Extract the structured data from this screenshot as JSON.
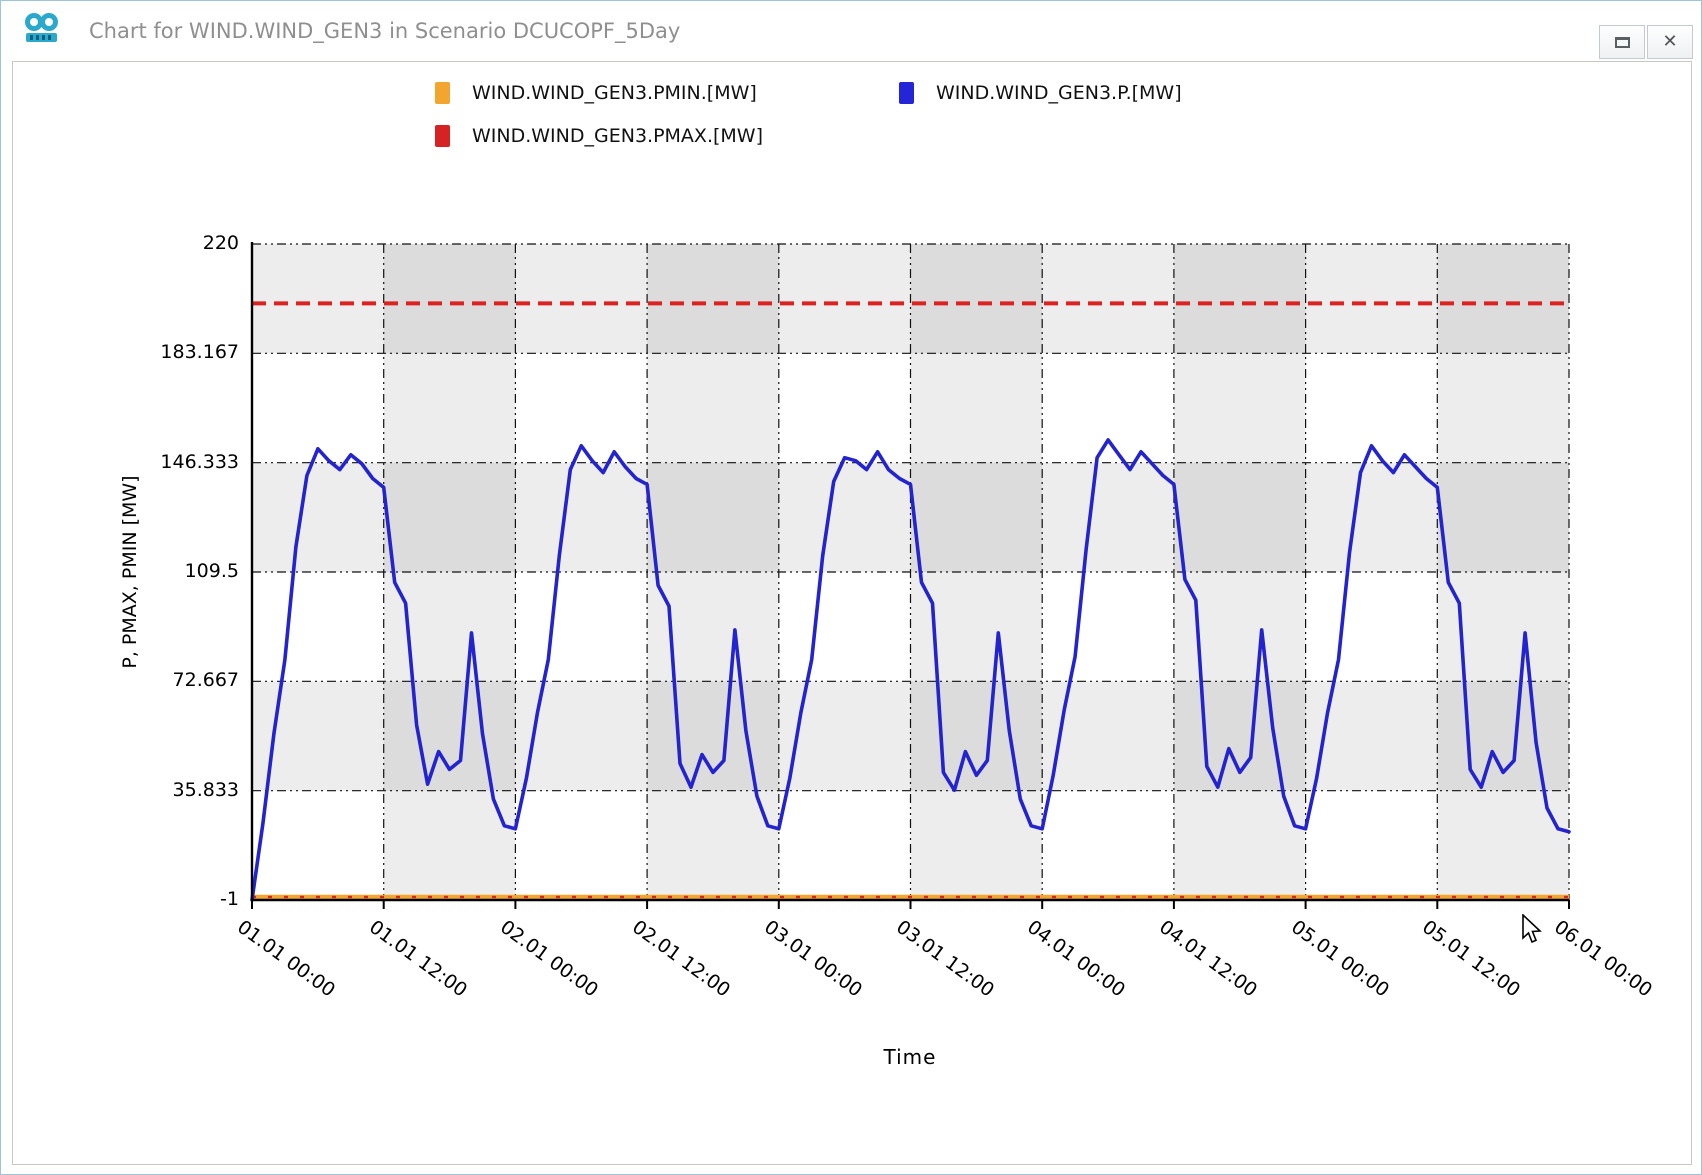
{
  "titlebar": {
    "title": "Chart for WIND.WIND_GEN3 in Scenario DCUCOPF_5Day",
    "buttons": [
      "maximize",
      "close"
    ]
  },
  "legend": {
    "items": [
      {
        "label": "WIND.WIND_GEN3.PMIN.[MW]",
        "color": "#f2a52f"
      },
      {
        "label": "WIND.WIND_GEN3.P.[MW]",
        "color": "#2525d8"
      },
      {
        "label": "WIND.WIND_GEN3.PMAX.[MW]",
        "color": "#d62222"
      }
    ]
  },
  "chart_data": {
    "type": "line",
    "title": "",
    "xlabel": "Time",
    "ylabel": "P, PMAX, PMIN [MW]",
    "ylim": [
      -1,
      220
    ],
    "x_hours_range": [
      0,
      120
    ],
    "grid": "dash-dot major grid, both axes",
    "background": {
      "plot": "#ffffff",
      "band_single": "rgba(0,0,0,0.07)",
      "shading": "alternating 12h vertical bands and alternating horizontal bands form a checkerboard"
    },
    "yticks": [
      {
        "value": 220,
        "label": "220"
      },
      {
        "value": 183.167,
        "label": "183.167"
      },
      {
        "value": 146.333,
        "label": "146.333"
      },
      {
        "value": 109.5,
        "label": "109.5"
      },
      {
        "value": 72.667,
        "label": "72.667"
      },
      {
        "value": 35.833,
        "label": "35.833"
      },
      {
        "value": -1,
        "label": "-1"
      }
    ],
    "xticks": [
      {
        "hour": 0,
        "label": "01.01 00:00"
      },
      {
        "hour": 12,
        "label": "01.01 12:00"
      },
      {
        "hour": 24,
        "label": "02.01 00:00"
      },
      {
        "hour": 36,
        "label": "02.01 12:00"
      },
      {
        "hour": 48,
        "label": "03.01 00:00"
      },
      {
        "hour": 60,
        "label": "03.01 12:00"
      },
      {
        "hour": 72,
        "label": "04.01 00:00"
      },
      {
        "hour": 84,
        "label": "04.01 12:00"
      },
      {
        "hour": 96,
        "label": "05.01 00:00"
      },
      {
        "hour": 108,
        "label": "05.01 12:00"
      },
      {
        "hour": 120,
        "label": "06.01 00:00"
      }
    ],
    "series": [
      {
        "name": "WIND.WIND_GEN3.PMIN.[MW]",
        "color": "#f2a52f",
        "style": "solid with red dash ticks",
        "constant_value": 0
      },
      {
        "name": "WIND.WIND_GEN3.PMAX.[MW]",
        "color": "#dd2222",
        "style": "dashed",
        "constant_value": 200
      },
      {
        "name": "WIND.WIND_GEN3.P.[MW]",
        "color": "#2323cf",
        "style": "solid",
        "x_hours_step": 1,
        "values": [
          -1,
          25,
          55,
          80,
          118,
          142,
          151,
          147,
          144,
          149,
          146,
          141,
          138,
          106,
          99,
          58,
          38,
          49,
          43,
          46,
          89,
          55,
          33,
          24,
          23,
          40,
          62,
          80,
          115,
          144,
          152,
          147,
          143,
          150,
          145,
          141,
          139,
          105,
          98,
          45,
          37,
          48,
          42,
          46,
          90,
          56,
          34,
          24,
          23,
          40,
          62,
          80,
          115,
          140,
          148,
          147,
          144,
          150,
          144,
          141,
          139,
          106,
          99,
          42,
          36,
          49,
          41,
          46,
          89,
          56,
          33,
          24,
          23,
          41,
          63,
          81,
          117,
          148,
          154,
          149,
          144,
          150,
          146,
          142,
          139,
          107,
          100,
          44,
          37,
          50,
          42,
          47,
          90,
          57,
          34,
          24,
          23,
          40,
          62,
          80,
          116,
          143,
          152,
          147,
          143,
          149,
          145,
          141,
          138,
          106,
          99,
          43,
          37,
          49,
          42,
          46,
          89,
          52,
          30,
          23,
          22
        ]
      }
    ]
  }
}
